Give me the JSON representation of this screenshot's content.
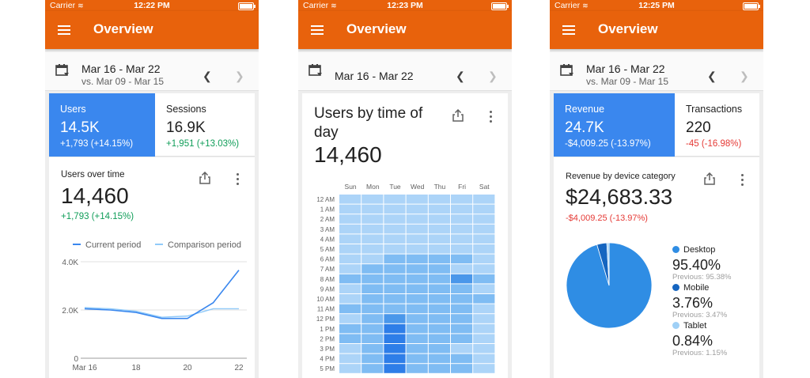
{
  "phones": [
    {
      "status": {
        "carrier": "Carrier",
        "time": "12:22 PM"
      },
      "appbar": {
        "title": "Overview"
      },
      "daterange": {
        "primary": "Mar 16 - Mar 22",
        "comparison": "vs. Mar 09 - Mar 15"
      },
      "kpis": [
        {
          "label": "Users",
          "value": "14.5K",
          "change": "+1,793 (+14.15%)"
        },
        {
          "label": "Sessions",
          "value": "16.9K",
          "change": "+1,951 (+13.03%)"
        }
      ],
      "card": {
        "title": "Users over time",
        "value": "14,460",
        "change": "+1,793 (+14.15%)"
      },
      "chart_data": {
        "type": "line",
        "x": [
          "Mar 16",
          "Mar 17",
          "Mar 18",
          "Mar 19",
          "Mar 20",
          "Mar 21",
          "Mar 22"
        ],
        "x_tick_labels": [
          "Mar 16",
          "18",
          "20",
          "22"
        ],
        "series": [
          {
            "name": "Current period",
            "values": [
              2050,
              2000,
              1900,
              1650,
              1650,
              2300,
              3650
            ],
            "color": "#3a87ee"
          },
          {
            "name": "Comparison period",
            "values": [
              2100,
              2050,
              1950,
              1700,
              1750,
              2050,
              2050
            ],
            "color": "#90caf9"
          }
        ],
        "y_ticks": [
          "0",
          "2.0K",
          "4.0K"
        ],
        "ylim": [
          0,
          4000
        ],
        "legend": "top",
        "grid": true
      }
    },
    {
      "status": {
        "carrier": "Carrier",
        "time": "12:23 PM"
      },
      "appbar": {
        "title": "Overview"
      },
      "daterange": {
        "primary": "Mar 16 - Mar 22"
      },
      "card": {
        "title_line1": "Users by time of",
        "title_line2": "day",
        "value": "14,460"
      },
      "chart_data": {
        "type": "heatmap",
        "days": [
          "Sun",
          "Mon",
          "Tue",
          "Wed",
          "Thu",
          "Fri",
          "Sat"
        ],
        "hours": [
          "12 AM",
          "1 AM",
          "2 AM",
          "3 AM",
          "4 AM",
          "5 AM",
          "6 AM",
          "7 AM",
          "8 AM",
          "9 AM",
          "10 AM",
          "11 AM",
          "12 PM",
          "1 PM",
          "2 PM",
          "3 PM",
          "4 PM",
          "5 PM"
        ],
        "levels": [
          [
            1,
            1,
            1,
            1,
            1,
            1,
            1
          ],
          [
            1,
            1,
            1,
            1,
            1,
            1,
            1
          ],
          [
            1,
            1,
            1,
            1,
            1,
            1,
            1
          ],
          [
            1,
            1,
            1,
            1,
            1,
            1,
            1
          ],
          [
            1,
            1,
            1,
            1,
            1,
            1,
            1
          ],
          [
            1,
            1,
            1,
            1,
            1,
            1,
            1
          ],
          [
            1,
            1,
            2,
            2,
            2,
            2,
            1
          ],
          [
            1,
            2,
            2,
            2,
            2,
            1,
            1
          ],
          [
            2,
            2,
            2,
            2,
            2,
            3,
            2
          ],
          [
            1,
            2,
            2,
            2,
            2,
            2,
            1
          ],
          [
            1,
            2,
            2,
            2,
            2,
            2,
            2
          ],
          [
            2,
            2,
            2,
            2,
            2,
            2,
            1
          ],
          [
            1,
            2,
            3,
            2,
            2,
            2,
            1
          ],
          [
            2,
            2,
            4,
            2,
            2,
            2,
            1
          ],
          [
            2,
            2,
            4,
            2,
            2,
            2,
            1
          ],
          [
            1,
            2,
            4,
            2,
            2,
            1,
            1
          ],
          [
            1,
            2,
            4,
            2,
            2,
            2,
            1
          ],
          [
            1,
            2,
            4,
            2,
            2,
            2,
            1
          ]
        ],
        "colors": [
          "#c9e3fb",
          "#acd4f8",
          "#7fbcf3",
          "#4a97ea",
          "#2e7ee8"
        ]
      }
    },
    {
      "status": {
        "carrier": "Carrier",
        "time": "12:25 PM"
      },
      "appbar": {
        "title": "Overview"
      },
      "daterange": {
        "primary": "Mar 16 - Mar 22",
        "comparison": "vs. Mar 09 - Mar 15"
      },
      "kpis": [
        {
          "label": "Revenue",
          "value": "24.7K",
          "change": "-$4,009.25 (-13.97%)"
        },
        {
          "label": "Transactions",
          "value": "220",
          "change": "-45 (-16.98%)"
        }
      ],
      "card": {
        "title": "Revenue by device category",
        "value": "$24,683.33",
        "change": "-$4,009.25 (-13.97%)"
      },
      "chart_data": {
        "type": "pie",
        "slices": [
          {
            "name": "Desktop",
            "percent": "95.40%",
            "value": 95.4,
            "previous": "Previous: 95.38%",
            "color": "#2f8de4"
          },
          {
            "name": "Mobile",
            "percent": "3.76%",
            "value": 3.76,
            "previous": "Previous: 3.47%",
            "color": "#1565c0"
          },
          {
            "name": "Tablet",
            "percent": "0.84%",
            "value": 0.84,
            "previous": "Previous: 1.15%",
            "color": "#9fd0f6"
          }
        ]
      }
    }
  ]
}
